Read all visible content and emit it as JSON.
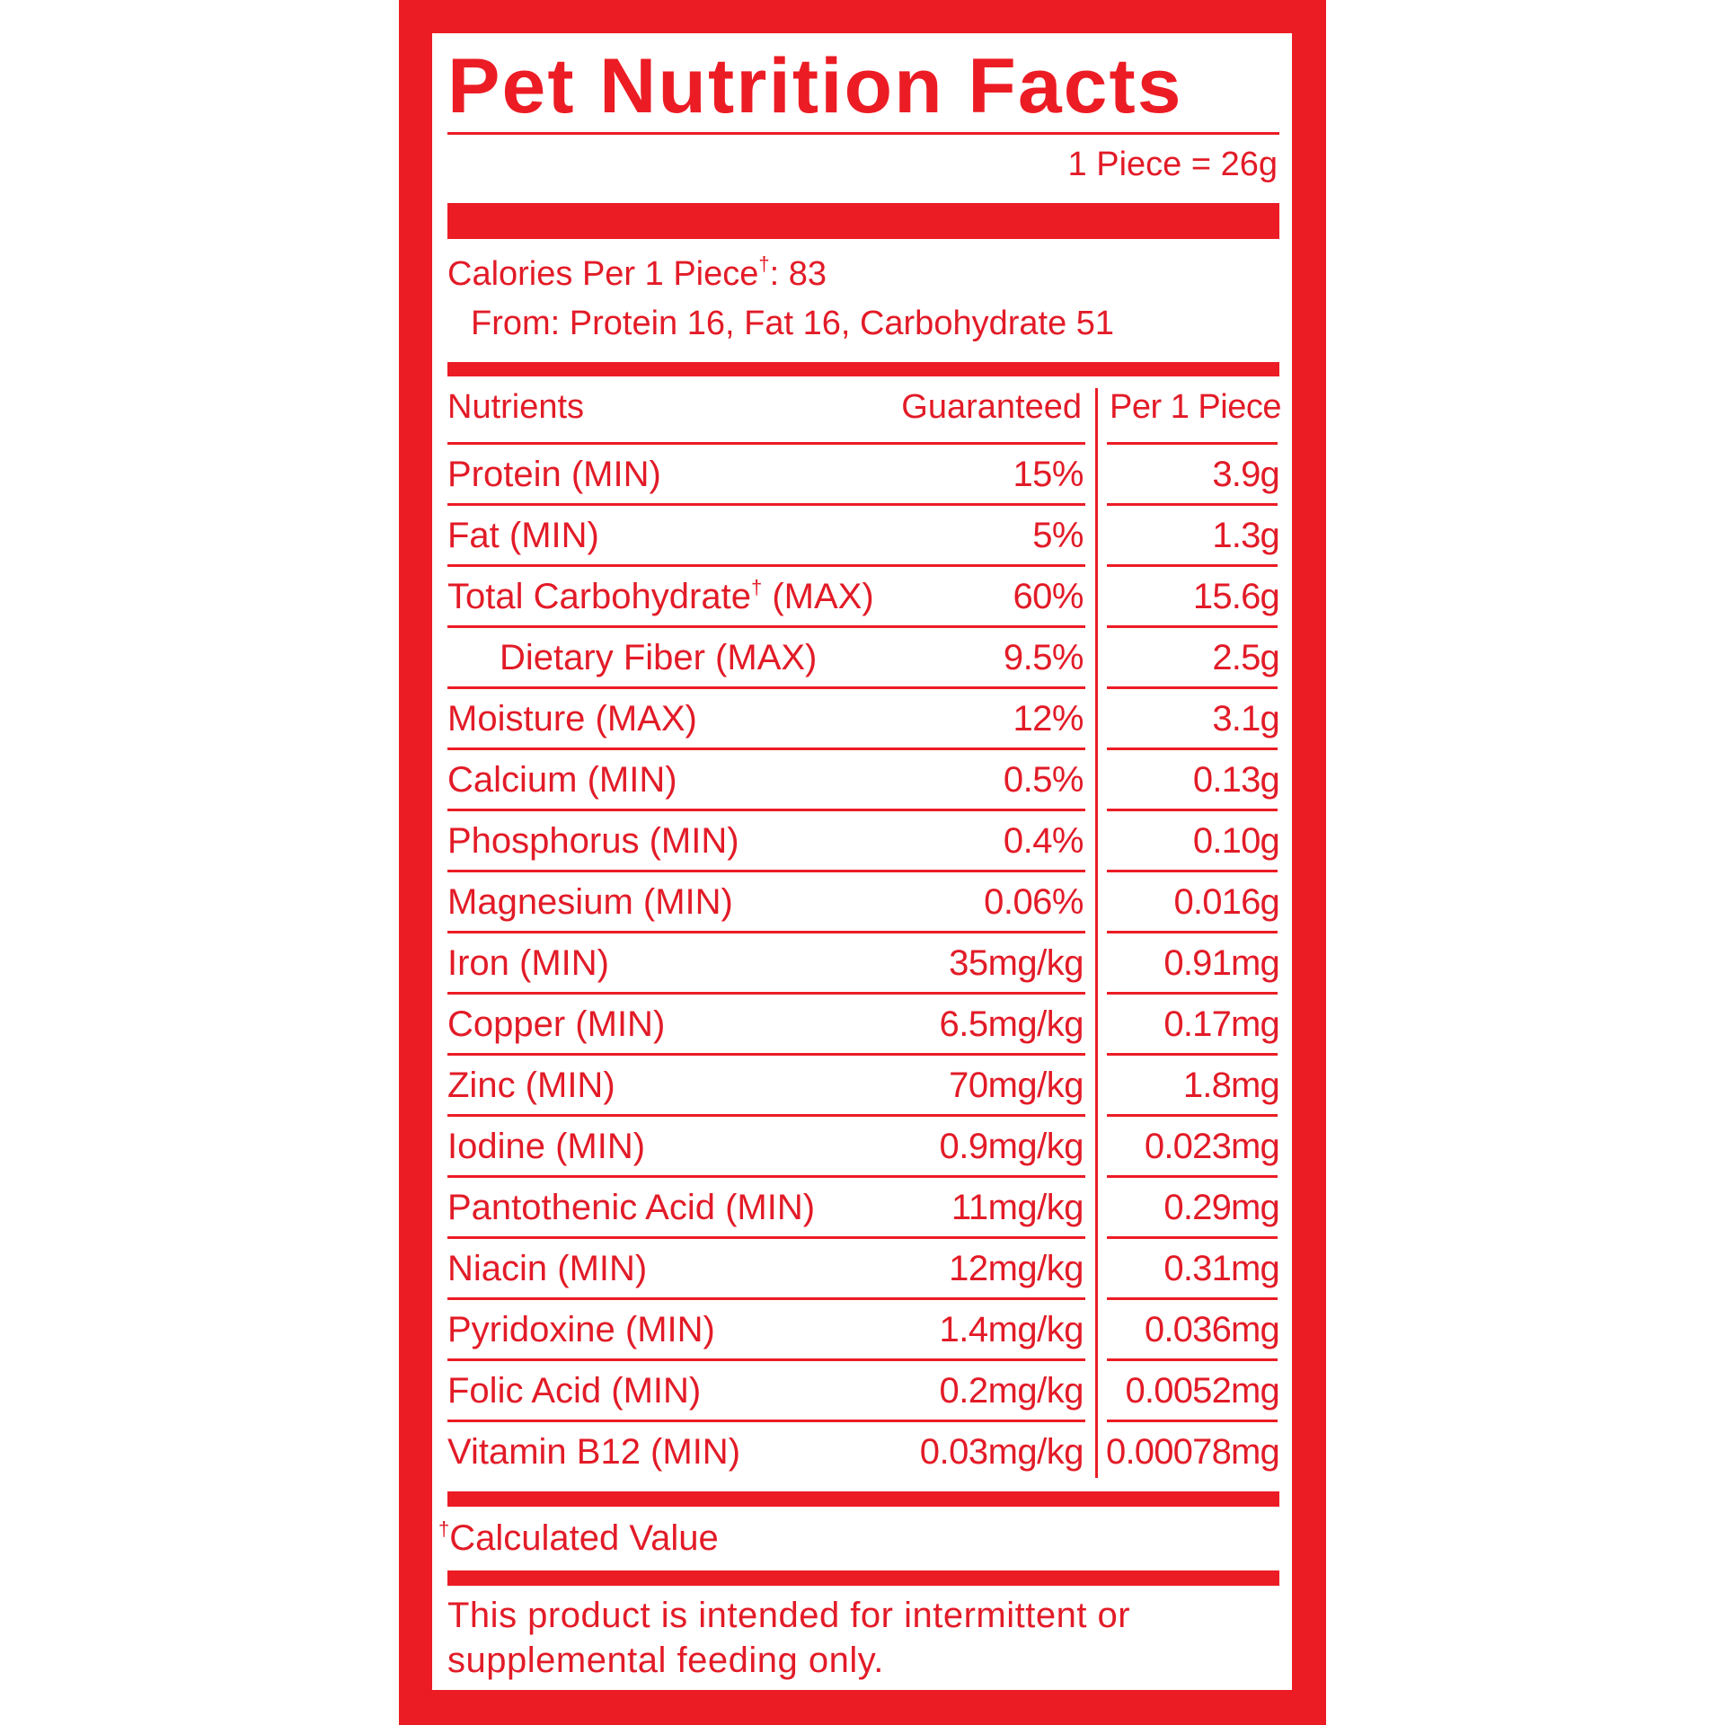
{
  "label": {
    "title": "Pet Nutrition Facts",
    "serving_size": "1 Piece = 26g",
    "calories_line": "Calories Per 1 Piece",
    "calories_dagger": "†",
    "calories_value": ": 83",
    "calories_from": "From: Protein 16, Fat 16, Carbohydrate 51",
    "colors": {
      "brand_red": "#ec1c24",
      "text_red": "#e21b27",
      "background": "#ffffff"
    }
  },
  "table": {
    "headers": {
      "nutrient": "Nutrients",
      "guaranteed": "Guaranteed",
      "per_piece": "Per 1 Piece"
    },
    "rows": [
      {
        "name": "Protein (MIN)",
        "guaranteed": "15%",
        "per_piece": "3.9g"
      },
      {
        "name": "Fat (MIN)",
        "guaranteed": "5%",
        "per_piece": "1.3g"
      },
      {
        "name": "Total Carbohydrate",
        "dagger": "†",
        "suffix": " (MAX)",
        "guaranteed": "60%",
        "per_piece": "15.6g"
      },
      {
        "name": "Dietary Fiber (MAX)",
        "guaranteed": "9.5%",
        "per_piece": "2.5g",
        "indent": true
      },
      {
        "name": "Moisture (MAX)",
        "guaranteed": "12%",
        "per_piece": "3.1g"
      },
      {
        "name": "Calcium (MIN)",
        "guaranteed": "0.5%",
        "per_piece": "0.13g"
      },
      {
        "name": "Phosphorus (MIN)",
        "guaranteed": "0.4%",
        "per_piece": "0.10g"
      },
      {
        "name": "Magnesium (MIN)",
        "guaranteed": "0.06%",
        "per_piece": "0.016g"
      },
      {
        "name": "Iron (MIN)",
        "guaranteed": "35mg/kg",
        "per_piece": "0.91mg"
      },
      {
        "name": "Copper (MIN)",
        "guaranteed": "6.5mg/kg",
        "per_piece": "0.17mg"
      },
      {
        "name": "Zinc (MIN)",
        "guaranteed": "70mg/kg",
        "per_piece": "1.8mg"
      },
      {
        "name": "Iodine (MIN)",
        "guaranteed": "0.9mg/kg",
        "per_piece": "0.023mg"
      },
      {
        "name": "Pantothenic Acid (MIN)",
        "guaranteed": "11mg/kg",
        "per_piece": "0.29mg"
      },
      {
        "name": "Niacin (MIN)",
        "guaranteed": "12mg/kg",
        "per_piece": "0.31mg"
      },
      {
        "name": "Pyridoxine (MIN)",
        "guaranteed": "1.4mg/kg",
        "per_piece": "0.036mg"
      },
      {
        "name": "Folic Acid (MIN)",
        "guaranteed": "0.2mg/kg",
        "per_piece": "0.0052mg"
      },
      {
        "name": "Vitamin B12 (MIN)",
        "guaranteed": "0.03mg/kg",
        "per_piece": "0.00078mg"
      }
    ]
  },
  "footer": {
    "note_dagger": "†",
    "note": "Calculated Value",
    "disclaimer": "This product is intended for intermittent or supplemental feeding only."
  }
}
